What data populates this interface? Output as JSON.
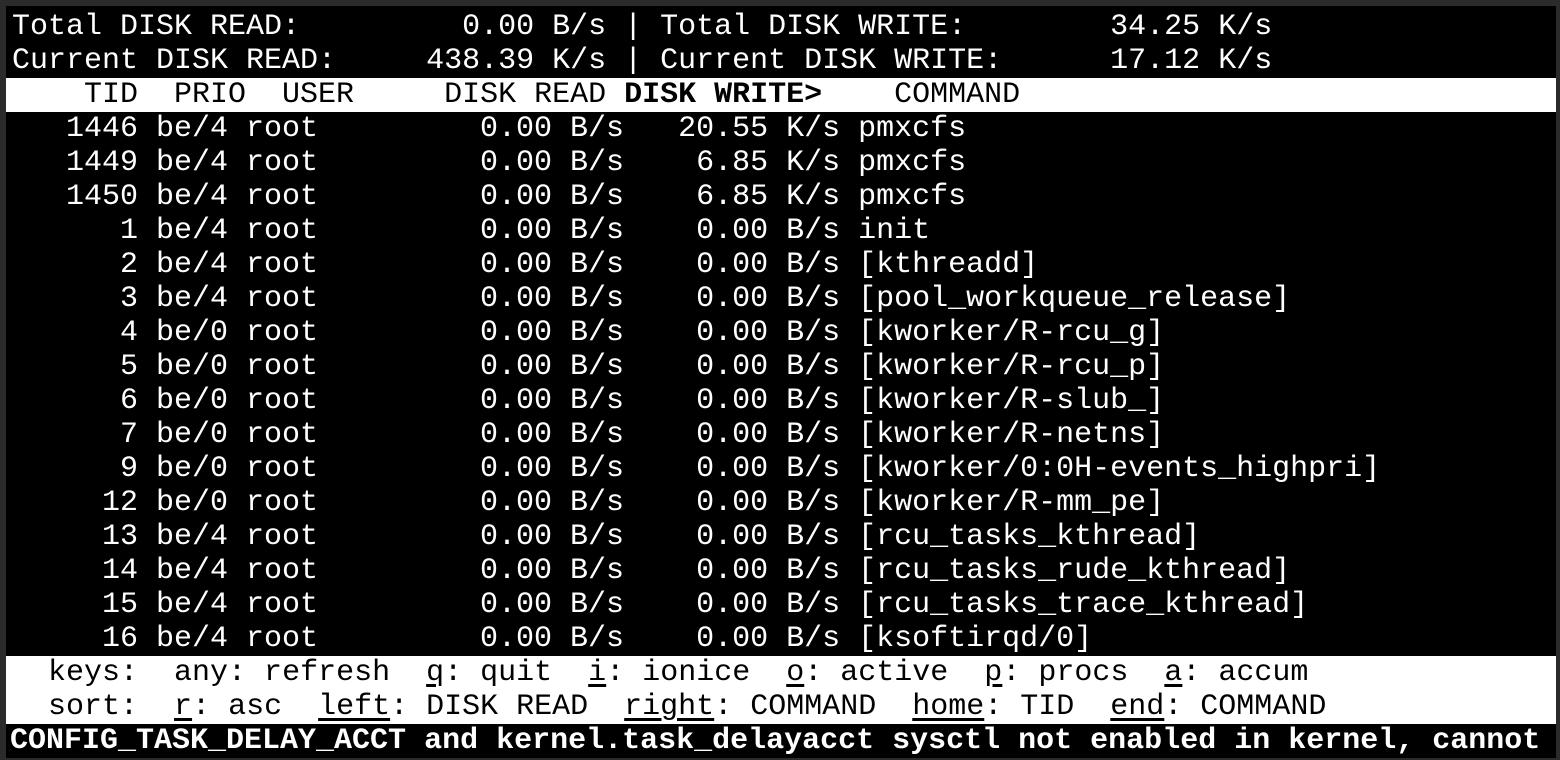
{
  "summary": {
    "total_read_label": "Total DISK READ:",
    "total_read_value": "0.00 B/s",
    "total_write_label": "Total DISK WRITE:",
    "total_write_value": "34.25 K/s",
    "current_read_label": "Current DISK READ:",
    "current_read_value": "438.39 K/s",
    "current_write_label": "Current DISK WRITE:",
    "current_write_value": "17.12 K/s",
    "separator": "|"
  },
  "columns": {
    "tid": "TID",
    "prio": "PRIO",
    "user": "USER",
    "disk_read": "DISK READ",
    "disk_write": "DISK WRITE>",
    "command": "COMMAND"
  },
  "rows": [
    {
      "tid": "1446",
      "prio": "be/4",
      "user": "root",
      "read": "0.00 B/s",
      "write": "20.55 K/s",
      "command": "pmxcfs"
    },
    {
      "tid": "1449",
      "prio": "be/4",
      "user": "root",
      "read": "0.00 B/s",
      "write": "6.85 K/s",
      "command": "pmxcfs"
    },
    {
      "tid": "1450",
      "prio": "be/4",
      "user": "root",
      "read": "0.00 B/s",
      "write": "6.85 K/s",
      "command": "pmxcfs"
    },
    {
      "tid": "1",
      "prio": "be/4",
      "user": "root",
      "read": "0.00 B/s",
      "write": "0.00 B/s",
      "command": "init"
    },
    {
      "tid": "2",
      "prio": "be/4",
      "user": "root",
      "read": "0.00 B/s",
      "write": "0.00 B/s",
      "command": "[kthreadd]"
    },
    {
      "tid": "3",
      "prio": "be/4",
      "user": "root",
      "read": "0.00 B/s",
      "write": "0.00 B/s",
      "command": "[pool_workqueue_release]"
    },
    {
      "tid": "4",
      "prio": "be/0",
      "user": "root",
      "read": "0.00 B/s",
      "write": "0.00 B/s",
      "command": "[kworker/R-rcu_g]"
    },
    {
      "tid": "5",
      "prio": "be/0",
      "user": "root",
      "read": "0.00 B/s",
      "write": "0.00 B/s",
      "command": "[kworker/R-rcu_p]"
    },
    {
      "tid": "6",
      "prio": "be/0",
      "user": "root",
      "read": "0.00 B/s",
      "write": "0.00 B/s",
      "command": "[kworker/R-slub_]"
    },
    {
      "tid": "7",
      "prio": "be/0",
      "user": "root",
      "read": "0.00 B/s",
      "write": "0.00 B/s",
      "command": "[kworker/R-netns]"
    },
    {
      "tid": "9",
      "prio": "be/0",
      "user": "root",
      "read": "0.00 B/s",
      "write": "0.00 B/s",
      "command": "[kworker/0:0H-events_highpri]"
    },
    {
      "tid": "12",
      "prio": "be/0",
      "user": "root",
      "read": "0.00 B/s",
      "write": "0.00 B/s",
      "command": "[kworker/R-mm_pe]"
    },
    {
      "tid": "13",
      "prio": "be/4",
      "user": "root",
      "read": "0.00 B/s",
      "write": "0.00 B/s",
      "command": "[rcu_tasks_kthread]"
    },
    {
      "tid": "14",
      "prio": "be/4",
      "user": "root",
      "read": "0.00 B/s",
      "write": "0.00 B/s",
      "command": "[rcu_tasks_rude_kthread]"
    },
    {
      "tid": "15",
      "prio": "be/4",
      "user": "root",
      "read": "0.00 B/s",
      "write": "0.00 B/s",
      "command": "[rcu_tasks_trace_kthread]"
    },
    {
      "tid": "16",
      "prio": "be/4",
      "user": "root",
      "read": "0.00 B/s",
      "write": "0.00 B/s",
      "command": "[ksoftirqd/0]"
    }
  ],
  "footer": {
    "keys_label": "keys:",
    "keys": [
      {
        "key": "",
        "rest": "any: refresh"
      },
      {
        "key": "q",
        "rest": ": quit"
      },
      {
        "key": "i",
        "rest": ": ionice"
      },
      {
        "key": "o",
        "rest": ": active"
      },
      {
        "key": "p",
        "rest": ": procs"
      },
      {
        "key": "a",
        "rest": ": accum"
      }
    ],
    "sort_label": "sort:",
    "sort": [
      {
        "key": "r",
        "rest": ": asc"
      },
      {
        "key": "left",
        "rest": ": DISK READ"
      },
      {
        "key": "right",
        "rest": ": COMMAND"
      },
      {
        "key": "home",
        "rest": ": TID"
      },
      {
        "key": "end",
        "rest": ": COMMAND"
      }
    ]
  },
  "warning": "CONFIG_TASK_DELAY_ACCT and kernel.task_delayacct sysctl not enabled in kernel, cannot",
  "colors": {
    "background": "#000000",
    "foreground": "#ffffff",
    "inverse_bar": "#ffffff"
  }
}
